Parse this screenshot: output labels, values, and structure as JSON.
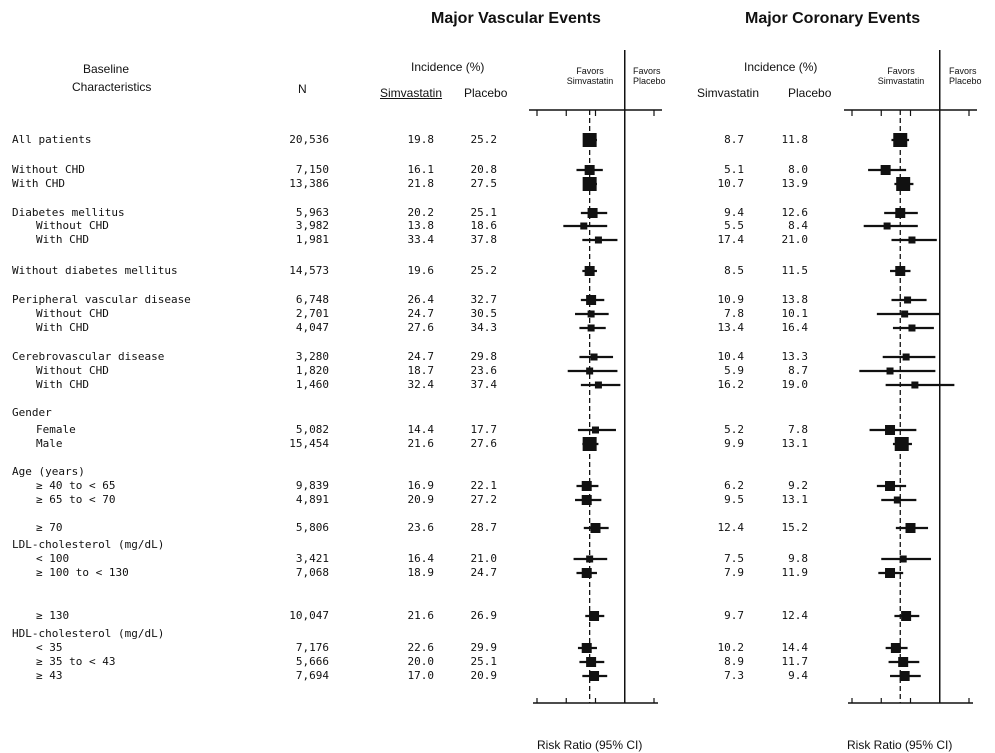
{
  "header": {
    "baseline": [
      "Baseline",
      "Characteristics"
    ],
    "n": "N",
    "vascular_title": "Major Vascular Events",
    "coronary_title": "Major Coronary Events",
    "incidence": "Incidence (%)",
    "simvastatin": "Simvastatin",
    "placebo": "Placebo",
    "favors_simva": [
      "Favors",
      "Simvastatin"
    ],
    "favors_placebo": [
      "Favors",
      "Placebo"
    ],
    "axis_label": "Risk Ratio (95% CI)"
  },
  "rows": [
    {
      "label": "All patients",
      "indent": 0,
      "n": "20,536",
      "v_s": "19.8",
      "v_p": "25.2",
      "c_s": "8.7",
      "c_p": "11.8"
    },
    {
      "label": "Without CHD",
      "indent": 0,
      "n": "7,150",
      "v_s": "16.1",
      "v_p": "20.8",
      "c_s": "5.1",
      "c_p": "8.0"
    },
    {
      "label": "With CHD",
      "indent": 0,
      "n": "13,386",
      "v_s": "21.8",
      "v_p": "27.5",
      "c_s": "10.7",
      "c_p": "13.9"
    },
    {
      "label": "Diabetes mellitus",
      "indent": 0,
      "n": "5,963",
      "v_s": "20.2",
      "v_p": "25.1",
      "c_s": "9.4",
      "c_p": "12.6"
    },
    {
      "label": "Without CHD",
      "indent": 1,
      "n": "3,982",
      "v_s": "13.8",
      "v_p": "18.6",
      "c_s": "5.5",
      "c_p": "8.4"
    },
    {
      "label": "With CHD",
      "indent": 1,
      "n": "1,981",
      "v_s": "33.4",
      "v_p": "37.8",
      "c_s": "17.4",
      "c_p": "21.0"
    },
    {
      "label": "Without diabetes mellitus",
      "indent": 0,
      "n": "14,573",
      "v_s": "19.6",
      "v_p": "25.2",
      "c_s": "8.5",
      "c_p": "11.5"
    },
    {
      "label": "Peripheral vascular disease",
      "indent": 0,
      "n": "6,748",
      "v_s": "26.4",
      "v_p": "32.7",
      "c_s": "10.9",
      "c_p": "13.8"
    },
    {
      "label": "Without CHD",
      "indent": 1,
      "n": "2,701",
      "v_s": "24.7",
      "v_p": "30.5",
      "c_s": "7.8",
      "c_p": "10.1"
    },
    {
      "label": "With CHD",
      "indent": 1,
      "n": "4,047",
      "v_s": "27.6",
      "v_p": "34.3",
      "c_s": "13.4",
      "c_p": "16.4"
    },
    {
      "label": "Cerebrovascular disease",
      "indent": 0,
      "n": "3,280",
      "v_s": "24.7",
      "v_p": "29.8",
      "c_s": "10.4",
      "c_p": "13.3"
    },
    {
      "label": "Without CHD",
      "indent": 1,
      "n": "1,820",
      "v_s": "18.7",
      "v_p": "23.6",
      "c_s": "5.9",
      "c_p": "8.7"
    },
    {
      "label": "With CHD",
      "indent": 1,
      "n": "1,460",
      "v_s": "32.4",
      "v_p": "37.4",
      "c_s": "16.2",
      "c_p": "19.0"
    },
    {
      "label": "Gender",
      "indent": 0,
      "n": "",
      "v_s": "",
      "v_p": "",
      "c_s": "",
      "c_p": ""
    },
    {
      "label": "Female",
      "indent": 1,
      "n": "5,082",
      "v_s": "14.4",
      "v_p": "17.7",
      "c_s": "5.2",
      "c_p": "7.8"
    },
    {
      "label": "Male",
      "indent": 1,
      "n": "15,454",
      "v_s": "21.6",
      "v_p": "27.6",
      "c_s": "9.9",
      "c_p": "13.1"
    },
    {
      "label": "Age (years)",
      "indent": 0,
      "n": "",
      "v_s": "",
      "v_p": "",
      "c_s": "",
      "c_p": ""
    },
    {
      "label": "≥ 40 to < 65",
      "indent": 1,
      "n": "9,839",
      "v_s": "16.9",
      "v_p": "22.1",
      "c_s": "6.2",
      "c_p": "9.2"
    },
    {
      "label": "≥ 65 to < 70",
      "indent": 1,
      "n": "4,891",
      "v_s": "20.9",
      "v_p": "27.2",
      "c_s": "9.5",
      "c_p": "13.1"
    },
    {
      "label": "≥ 70",
      "indent": 1,
      "n": "5,806",
      "v_s": "23.6",
      "v_p": "28.7",
      "c_s": "12.4",
      "c_p": "15.2"
    },
    {
      "label": "LDL-cholesterol (mg/dL)",
      "indent": 0,
      "n": "",
      "v_s": "",
      "v_p": "",
      "c_s": "",
      "c_p": ""
    },
    {
      "label": "< 100",
      "indent": 1,
      "n": "3,421",
      "v_s": "16.4",
      "v_p": "21.0",
      "c_s": "7.5",
      "c_p": "9.8"
    },
    {
      "label": "≥ 100 to < 130",
      "indent": 1,
      "n": "7,068",
      "v_s": "18.9",
      "v_p": "24.7",
      "c_s": "7.9",
      "c_p": "11.9"
    },
    {
      "label": "≥ 130",
      "indent": 1,
      "n": "10,047",
      "v_s": "21.6",
      "v_p": "26.9",
      "c_s": "9.7",
      "c_p": "12.4"
    },
    {
      "label": "HDL-cholesterol (mg/dL)",
      "indent": 0,
      "n": "",
      "v_s": "",
      "v_p": "",
      "c_s": "",
      "c_p": ""
    },
    {
      "label": "< 35",
      "indent": 1,
      "n": "7,176",
      "v_s": "22.6",
      "v_p": "29.9",
      "c_s": "10.2",
      "c_p": "14.4"
    },
    {
      "label": "≥ 35 to < 43",
      "indent": 1,
      "n": "5,666",
      "v_s": "20.0",
      "v_p": "25.1",
      "c_s": "8.9",
      "c_p": "11.7"
    },
    {
      "label": "≥ 43",
      "indent": 1,
      "n": "7,694",
      "v_s": "17.0",
      "v_p": "20.9",
      "c_s": "7.3",
      "c_p": "9.4"
    }
  ],
  "chart_data": [
    {
      "type": "forest",
      "title": "Major Vascular Events",
      "xlabel": "Risk Ratio (95% CI)",
      "xlim": [
        0.4,
        1.2
      ],
      "xticks": [
        "0.4",
        "0.6",
        "0.8",
        "1.0",
        "1.2"
      ],
      "reference_line": 1.0,
      "overall_dashed_line": 0.76,
      "points": [
        {
          "rr": 0.76,
          "lo": 0.72,
          "hi": 0.81,
          "size": 3
        },
        {
          "rr": 0.76,
          "lo": 0.67,
          "hi": 0.85,
          "size": 2
        },
        {
          "rr": 0.76,
          "lo": 0.72,
          "hi": 0.81,
          "size": 3
        },
        {
          "rr": 0.78,
          "lo": 0.7,
          "hi": 0.88,
          "size": 2
        },
        {
          "rr": 0.72,
          "lo": 0.58,
          "hi": 0.88,
          "size": 1
        },
        {
          "rr": 0.82,
          "lo": 0.71,
          "hi": 0.95,
          "size": 1
        },
        {
          "rr": 0.76,
          "lo": 0.71,
          "hi": 0.81,
          "size": 2
        },
        {
          "rr": 0.77,
          "lo": 0.7,
          "hi": 0.86,
          "size": 2
        },
        {
          "rr": 0.77,
          "lo": 0.66,
          "hi": 0.89,
          "size": 1
        },
        {
          "rr": 0.77,
          "lo": 0.69,
          "hi": 0.87,
          "size": 1
        },
        {
          "rr": 0.79,
          "lo": 0.69,
          "hi": 0.92,
          "size": 1
        },
        {
          "rr": 0.76,
          "lo": 0.61,
          "hi": 0.95,
          "size": 1
        },
        {
          "rr": 0.82,
          "lo": 0.7,
          "hi": 0.97,
          "size": 1
        },
        null,
        {
          "rr": 0.8,
          "lo": 0.68,
          "hi": 0.94,
          "size": 1
        },
        {
          "rr": 0.76,
          "lo": 0.71,
          "hi": 0.82,
          "size": 3
        },
        null,
        {
          "rr": 0.74,
          "lo": 0.67,
          "hi": 0.82,
          "size": 2
        },
        {
          "rr": 0.74,
          "lo": 0.66,
          "hi": 0.84,
          "size": 2
        },
        {
          "rr": 0.8,
          "lo": 0.72,
          "hi": 0.89,
          "size": 2
        },
        null,
        {
          "rr": 0.76,
          "lo": 0.65,
          "hi": 0.88,
          "size": 1
        },
        {
          "rr": 0.74,
          "lo": 0.67,
          "hi": 0.81,
          "size": 2
        },
        {
          "rr": 0.79,
          "lo": 0.73,
          "hi": 0.86,
          "size": 2
        },
        null,
        {
          "rr": 0.74,
          "lo": 0.68,
          "hi": 0.81,
          "size": 2
        },
        {
          "rr": 0.77,
          "lo": 0.69,
          "hi": 0.86,
          "size": 2
        },
        {
          "rr": 0.79,
          "lo": 0.71,
          "hi": 0.88,
          "size": 2
        }
      ]
    },
    {
      "type": "forest",
      "title": "Major Coronary Events",
      "xlabel": "Risk Ratio (95% CI)",
      "xlim": [
        0.4,
        1.2
      ],
      "xticks": [
        "0.4",
        "0.6",
        "0.8",
        "1.0",
        "1.2"
      ],
      "reference_line": 1.0,
      "overall_dashed_line": 0.73,
      "points": [
        {
          "rr": 0.73,
          "lo": 0.67,
          "hi": 0.79,
          "size": 3
        },
        {
          "rr": 0.63,
          "lo": 0.51,
          "hi": 0.77,
          "size": 2
        },
        {
          "rr": 0.75,
          "lo": 0.69,
          "hi": 0.82,
          "size": 3
        },
        {
          "rr": 0.73,
          "lo": 0.62,
          "hi": 0.85,
          "size": 2
        },
        {
          "rr": 0.64,
          "lo": 0.48,
          "hi": 0.85,
          "size": 1
        },
        {
          "rr": 0.81,
          "lo": 0.67,
          "hi": 0.98,
          "size": 1
        },
        {
          "rr": 0.73,
          "lo": 0.66,
          "hi": 0.8,
          "size": 2
        },
        {
          "rr": 0.78,
          "lo": 0.67,
          "hi": 0.91,
          "size": 1
        },
        {
          "rr": 0.76,
          "lo": 0.57,
          "hi": 1.0,
          "size": 1
        },
        {
          "rr": 0.81,
          "lo": 0.68,
          "hi": 0.96,
          "size": 1
        },
        {
          "rr": 0.77,
          "lo": 0.61,
          "hi": 0.97,
          "size": 1
        },
        {
          "rr": 0.66,
          "lo": 0.45,
          "hi": 0.97,
          "size": 1
        },
        {
          "rr": 0.83,
          "lo": 0.63,
          "hi": 1.1,
          "size": 1
        },
        null,
        {
          "rr": 0.66,
          "lo": 0.52,
          "hi": 0.84,
          "size": 2
        },
        {
          "rr": 0.74,
          "lo": 0.68,
          "hi": 0.81,
          "size": 3
        },
        null,
        {
          "rr": 0.66,
          "lo": 0.57,
          "hi": 0.77,
          "size": 2
        },
        {
          "rr": 0.71,
          "lo": 0.6,
          "hi": 0.84,
          "size": 1
        },
        {
          "rr": 0.8,
          "lo": 0.7,
          "hi": 0.92,
          "size": 2
        },
        null,
        {
          "rr": 0.75,
          "lo": 0.6,
          "hi": 0.94,
          "size": 1
        },
        {
          "rr": 0.66,
          "lo": 0.58,
          "hi": 0.75,
          "size": 2
        },
        {
          "rr": 0.77,
          "lo": 0.69,
          "hi": 0.86,
          "size": 2
        },
        null,
        {
          "rr": 0.7,
          "lo": 0.63,
          "hi": 0.78,
          "size": 2
        },
        {
          "rr": 0.75,
          "lo": 0.65,
          "hi": 0.86,
          "size": 2
        },
        {
          "rr": 0.76,
          "lo": 0.66,
          "hi": 0.87,
          "size": 2
        }
      ]
    }
  ]
}
